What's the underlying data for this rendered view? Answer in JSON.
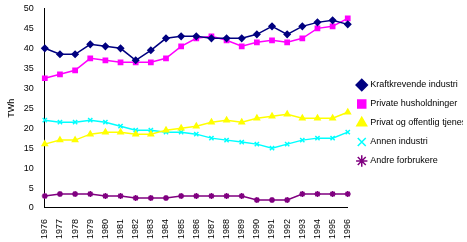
{
  "chart_data": {
    "type": "line",
    "y_label": "TWh",
    "categories": [
      "1976",
      "1977",
      "1978",
      "1979",
      "1980",
      "1981",
      "1982",
      "1983",
      "1984",
      "1985",
      "1986",
      "1987",
      "1988",
      "1989",
      "1990",
      "1991",
      "1992",
      "1993",
      "1994",
      "1995",
      "1996"
    ],
    "ylim": [
      0,
      50
    ],
    "yticks": [
      0,
      5,
      10,
      15,
      20,
      25,
      30,
      35,
      40,
      45,
      50
    ],
    "grid": false,
    "legend": "right",
    "series": [
      {
        "name": "Kraftkrevende industri",
        "color": "#000080",
        "marker": "diamond",
        "line_style": "solid",
        "values": [
          40,
          38.5,
          38.5,
          41,
          40.5,
          40,
          37,
          39.5,
          42.5,
          43,
          43,
          42.5,
          42.5,
          42.5,
          43.5,
          45.5,
          43.5,
          45.5,
          46.5,
          47,
          46
        ]
      },
      {
        "name": "Private husholdninger",
        "color": "#ff00ff",
        "marker": "square",
        "line_style": "solid",
        "values": [
          32.5,
          33.5,
          34.5,
          37.5,
          37,
          36.5,
          36.5,
          36.5,
          37.5,
          40.5,
          42.5,
          43,
          42,
          40.5,
          41.5,
          42,
          41.5,
          42.5,
          45,
          45.5,
          47.5
        ]
      },
      {
        "name": "Privat og offentlig tjenesteyting",
        "color": "#ffff00",
        "marker": "triangle",
        "line_style": "solid",
        "values": [
          16,
          17,
          17,
          18.5,
          19,
          19,
          18.5,
          18.5,
          19.5,
          20,
          20.5,
          21.5,
          22,
          21.5,
          22.5,
          23,
          23.5,
          22.5,
          22.5,
          22.5,
          24
        ]
      },
      {
        "name": "Annen industri",
        "color": "#00ffff",
        "marker": "x",
        "line_style": "solid",
        "values": [
          22,
          21.5,
          21.5,
          22,
          21.5,
          20.5,
          19.5,
          19.5,
          19,
          19,
          18.5,
          17.5,
          17,
          16.5,
          16,
          15,
          16,
          17,
          17.5,
          17.5,
          19
        ]
      },
      {
        "name": "Andre forbrukere",
        "color": "#800080",
        "marker": "star",
        "line_style": "solid",
        "values": [
          3,
          3.5,
          3.5,
          3.5,
          3,
          3,
          2.5,
          2.5,
          2.5,
          3,
          3,
          3,
          3,
          3,
          2,
          2,
          2,
          3.5,
          3.5,
          3.5,
          3.5
        ]
      }
    ]
  }
}
